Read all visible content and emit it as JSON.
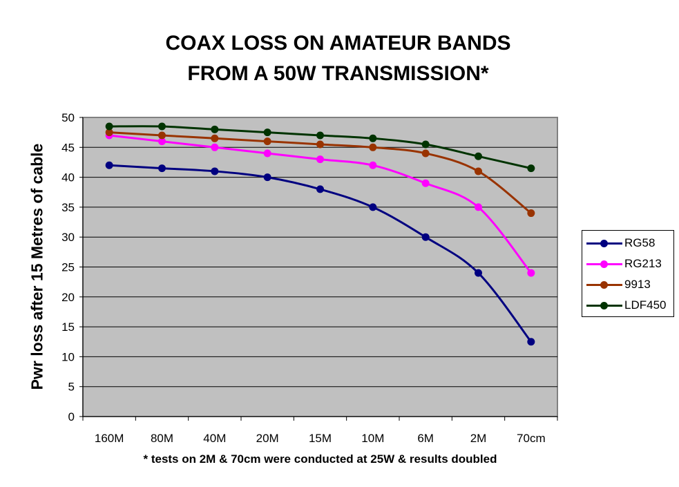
{
  "chart_data": {
    "type": "line",
    "title_lines": [
      "COAX LOSS ON AMATEUR BANDS",
      "FROM A 50W TRANSMISSION*"
    ],
    "xlabel": "",
    "ylabel": "Pwr loss after 15 Metres of cable",
    "footnote": "* tests on 2M & 70cm were conducted at 25W & results doubled",
    "categories": [
      "160M",
      "80M",
      "40M",
      "20M",
      "15M",
      "10M",
      "6M",
      "2M",
      "70cm"
    ],
    "ylim": [
      0,
      50
    ],
    "yticks": [
      0,
      5,
      10,
      15,
      20,
      25,
      30,
      35,
      40,
      45,
      50
    ],
    "grid": true,
    "legend_position": "right",
    "plot_background": "#c0c0c0",
    "series": [
      {
        "name": "RG58",
        "color": "#000080",
        "values": [
          42,
          41.5,
          41,
          40,
          38,
          35,
          30,
          24,
          12.5
        ]
      },
      {
        "name": "RG213",
        "color": "#ff00ff",
        "values": [
          47,
          46,
          45,
          44,
          43,
          42,
          39,
          35,
          24
        ]
      },
      {
        "name": "9913",
        "color": "#993300",
        "values": [
          47.5,
          47,
          46.5,
          46,
          45.5,
          45,
          44,
          41,
          34
        ]
      },
      {
        "name": "LDF450",
        "color": "#003300",
        "values": [
          48.5,
          48.5,
          48,
          47.5,
          47,
          46.5,
          45.5,
          43.5,
          41.5
        ]
      }
    ]
  }
}
